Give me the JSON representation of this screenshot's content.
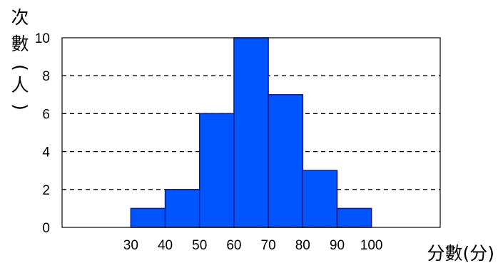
{
  "chart_data": {
    "type": "histogram",
    "bins": [
      {
        "from": 30,
        "to": 40,
        "value": 1
      },
      {
        "from": 40,
        "to": 50,
        "value": 2
      },
      {
        "from": 50,
        "to": 60,
        "value": 6
      },
      {
        "from": 60,
        "to": 70,
        "value": 10
      },
      {
        "from": 70,
        "to": 80,
        "value": 7
      },
      {
        "from": 80,
        "to": 90,
        "value": 3
      },
      {
        "from": 90,
        "to": 100,
        "value": 1
      }
    ],
    "x_ticks": [
      "30",
      "40",
      "50",
      "60",
      "70",
      "80",
      "90",
      "100"
    ],
    "y_ticks": [
      "0",
      "2",
      "4",
      "6",
      "8",
      "10"
    ],
    "xlim": [
      10,
      120
    ],
    "ylim": [
      0,
      10
    ],
    "xlabel": "分數(分)",
    "ylabel": [
      "次",
      "數",
      "(",
      "人",
      ")"
    ],
    "grid": "horizontal dashed",
    "bar_color": "#0055ff",
    "bar_edge_color": "#0a1a8c"
  }
}
